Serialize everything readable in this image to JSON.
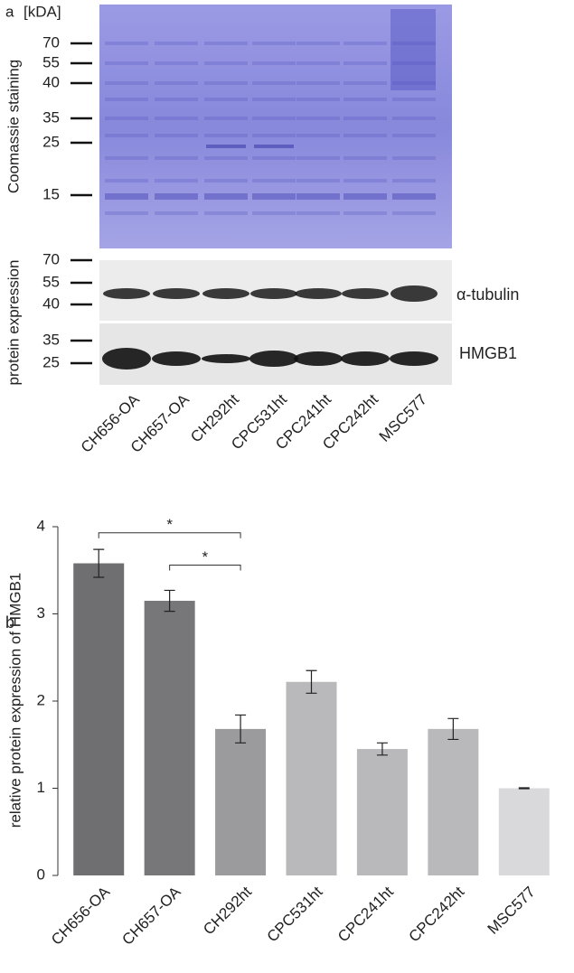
{
  "panel_a": {
    "label": "a",
    "unit": "[kDA]",
    "coomassie_label": "Coomassie staining",
    "blot_label": "protein expression",
    "coomassie_markers": [
      "70",
      "55",
      "40",
      "35",
      "25",
      "15"
    ],
    "tubulin_markers": [
      "70",
      "55",
      "40"
    ],
    "tubulin_label": "α-tubulin",
    "hmgb1_markers": [
      "35",
      "25"
    ],
    "hmgb1_label": "HMGB1",
    "lanes": [
      "CH656-OA",
      "CH657-OA",
      "CH292ht",
      "CPC531ht",
      "CPC241ht",
      "CPC242ht",
      "MSC577"
    ]
  },
  "chart_data": {
    "type": "bar",
    "panel_label": "b",
    "y_label": "relative protein expression of HMGB1",
    "categories": [
      "CH656-OA",
      "CH657-OA",
      "CH292ht",
      "CPC531ht",
      "CPC241ht",
      "CPC242ht",
      "MSC577"
    ],
    "values": [
      3.58,
      3.15,
      1.68,
      2.22,
      1.45,
      1.68,
      1.0
    ],
    "errors": [
      0.16,
      0.12,
      0.16,
      0.13,
      0.07,
      0.12,
      0.005
    ],
    "colors": [
      "#6f6f71",
      "#77777a",
      "#9b9b9d",
      "#b9b9bb",
      "#b9b9bb",
      "#b9b9bb",
      "#d9d9db"
    ],
    "ylim": [
      0,
      4
    ],
    "yticks": [
      0,
      1,
      2,
      3,
      4
    ],
    "annotations": [
      {
        "text": "*",
        "from": 0,
        "to": 2,
        "y": 3.93
      },
      {
        "text": "*",
        "from": 1,
        "to": 2,
        "y": 3.56
      }
    ]
  }
}
